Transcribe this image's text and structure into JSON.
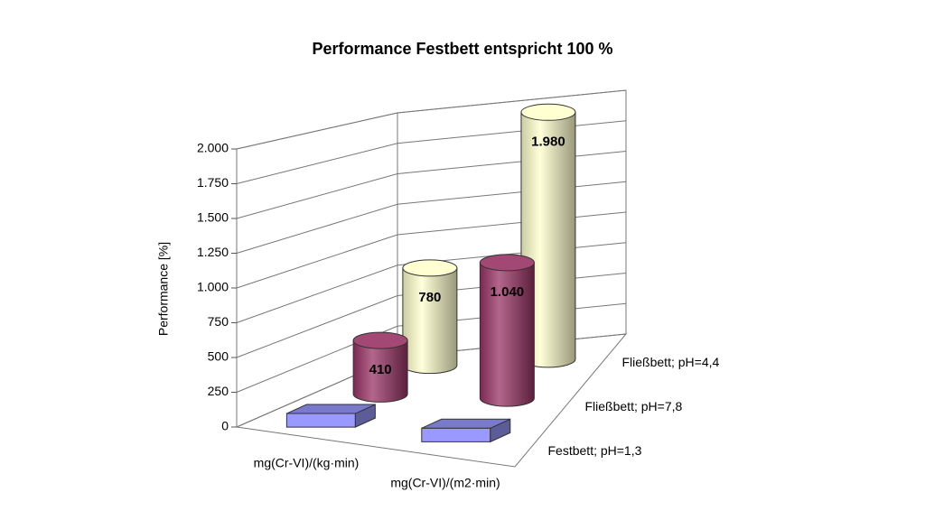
{
  "chart_data": {
    "type": "bar3d",
    "title": "Performance Festbett entspricht 100 %",
    "ylabel": "Performance [%]",
    "categories": [
      "mg(Cr-VI)/(kg·min)",
      "mg(Cr-VI)/(m2·min)"
    ],
    "series": [
      {
        "name": "Festbett; pH=1,3",
        "color": "#9999ff",
        "shape": "box",
        "values": [
          100,
          100
        ]
      },
      {
        "name": "Fließbett; pH=7,8",
        "color": "#993366",
        "shape": "cylinder",
        "values": [
          410,
          1040
        ],
        "value_labels": [
          "410",
          "1.040"
        ]
      },
      {
        "name": "Fließbett; pH=4,4",
        "color": "#ffffcc",
        "shape": "cylinder",
        "values": [
          780,
          1980
        ],
        "value_labels": [
          "780",
          "1.980"
        ]
      }
    ],
    "ylim": [
      0,
      2000
    ],
    "yticks": [
      0,
      250,
      500,
      750,
      {
        "value": 1000,
        "label": "1.000"
      },
      {
        "value": 1250,
        "label": "1.250"
      },
      {
        "value": 1500,
        "label": "1.500"
      },
      {
        "value": 1750,
        "label": "1.750"
      },
      {
        "value": 2000,
        "label": "2.000"
      }
    ],
    "grid": true
  }
}
